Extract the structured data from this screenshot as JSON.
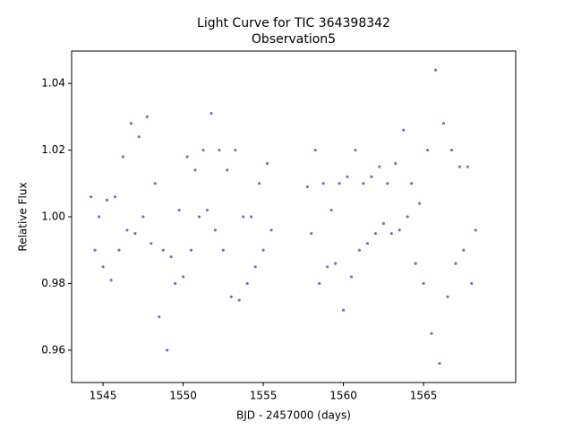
{
  "chart_data": {
    "type": "scatter",
    "title": "Light Curve for TIC 364398342",
    "subtitle": "Observation5",
    "xlabel": "BJD - 2457000 (days)",
    "ylabel": "Relative Flux",
    "color": "#9467bd",
    "xlim": [
      1543.04,
      1570.75
    ],
    "ylim": [
      0.9503,
      1.0497
    ],
    "xticks": [
      1545,
      1550,
      1555,
      1560,
      1565
    ],
    "yticks": [
      0.96,
      0.98,
      {
        "value": 1,
        "label": "1.00"
      },
      1.02,
      1.04
    ],
    "x": [
      1544.25,
      1544.5,
      1544.75,
      1545.0,
      1545.25,
      1545.5,
      1545.75,
      1546.0,
      1546.25,
      1546.5,
      1546.75,
      1547.0,
      1547.25,
      1547.5,
      1547.75,
      1548.0,
      1548.25,
      1548.5,
      1548.75,
      1549.0,
      1549.25,
      1549.5,
      1549.75,
      1550.0,
      1550.25,
      1550.5,
      1550.75,
      1551.0,
      1551.25,
      1551.5,
      1551.75,
      1552.0,
      1552.25,
      1552.5,
      1552.75,
      1553.0,
      1553.25,
      1553.5,
      1553.75,
      1554.0,
      1554.25,
      1554.5,
      1554.75,
      1555.0,
      1555.25,
      1555.5,
      1557.75,
      1558.0,
      1558.25,
      1558.5,
      1558.75,
      1559.0,
      1559.25,
      1559.5,
      1559.75,
      1560.0,
      1560.25,
      1560.5,
      1560.75,
      1561.0,
      1561.25,
      1561.5,
      1561.75,
      1562.0,
      1562.25,
      1562.5,
      1562.75,
      1563.0,
      1563.25,
      1563.5,
      1563.75,
      1564.0,
      1564.25,
      1564.5,
      1564.75,
      1565.0,
      1565.25,
      1565.5,
      1565.75,
      1566.0,
      1566.25,
      1566.5,
      1566.75,
      1567.0,
      1567.25,
      1567.5,
      1567.75,
      1568.0,
      1568.25
    ],
    "values": [
      1.006,
      0.99,
      1.0,
      0.985,
      1.005,
      0.981,
      1.006,
      0.99,
      1.018,
      0.996,
      1.028,
      0.995,
      1.024,
      1.0,
      1.03,
      0.992,
      1.01,
      0.97,
      0.99,
      0.96,
      0.988,
      0.98,
      1.002,
      0.982,
      1.018,
      0.99,
      1.014,
      1.0,
      1.02,
      1.002,
      1.031,
      0.996,
      1.02,
      0.99,
      1.014,
      0.976,
      1.02,
      0.975,
      1.0,
      0.98,
      1.0,
      0.985,
      1.01,
      0.99,
      1.016,
      0.996,
      1.009,
      0.995,
      1.02,
      0.98,
      1.01,
      0.985,
      1.002,
      0.986,
      1.01,
      0.972,
      1.012,
      0.982,
      1.02,
      0.99,
      1.01,
      0.992,
      1.012,
      0.995,
      1.015,
      0.998,
      1.01,
      0.995,
      1.016,
      0.996,
      1.026,
      1.0,
      1.01,
      0.986,
      1.004,
      0.98,
      1.02,
      0.965,
      1.044,
      0.956,
      1.028,
      0.976,
      1.02,
      0.986,
      1.015,
      0.99,
      1.015,
      0.98,
      0.996
    ]
  }
}
